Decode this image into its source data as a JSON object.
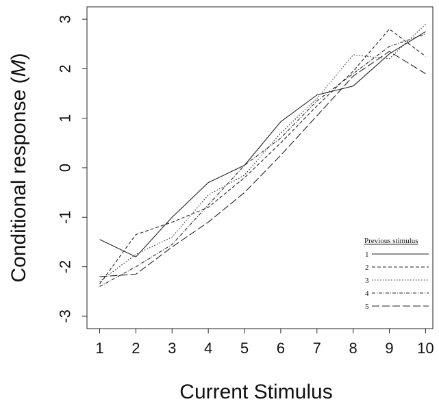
{
  "chart_data": {
    "type": "line",
    "title": "",
    "xlabel": "Current Stimulus",
    "ylabel": {
      "prefix": "Conditional response (",
      "italic": "M",
      "suffix": ")"
    },
    "x": [
      1,
      2,
      3,
      4,
      5,
      6,
      7,
      8,
      9,
      10
    ],
    "x_tick_labels": [
      "1",
      "2",
      "3",
      "4",
      "5",
      "6",
      "7",
      "8",
      "9",
      "10"
    ],
    "y_ticks": [
      -3,
      -2,
      -1,
      0,
      1,
      2,
      3
    ],
    "y_tick_labels": [
      "-3",
      "-2",
      "-1",
      "0",
      "1",
      "2",
      "3"
    ],
    "xlim": [
      0.65,
      10.2
    ],
    "ylim": [
      -3.25,
      3.25
    ],
    "grid": false,
    "legend": {
      "title": "Previous stimulus",
      "position": "bottom-right"
    },
    "series": [
      {
        "name": "1",
        "dash": "solid",
        "values": [
          -1.45,
          -1.8,
          -1.0,
          -0.3,
          0.05,
          0.93,
          1.47,
          1.65,
          2.3,
          2.75
        ]
      },
      {
        "name": "2",
        "dash": "dashed",
        "values": [
          -2.35,
          -1.35,
          -1.1,
          -0.8,
          -0.2,
          0.5,
          1.25,
          1.95,
          2.8,
          2.25
        ]
      },
      {
        "name": "3",
        "dash": "dotted",
        "values": [
          -2.3,
          -1.75,
          -1.4,
          -0.55,
          -0.15,
          0.7,
          1.4,
          2.28,
          2.2,
          2.9
        ]
      },
      {
        "name": "4",
        "dash": "dashdot",
        "values": [
          -2.4,
          -2.0,
          -1.55,
          -0.75,
          0.05,
          0.6,
          1.35,
          1.9,
          2.45,
          2.7
        ]
      },
      {
        "name": "5",
        "dash": "longdash",
        "values": [
          -2.2,
          -2.15,
          -1.6,
          -1.1,
          -0.5,
          0.25,
          1.05,
          1.85,
          2.35,
          1.9
        ]
      }
    ]
  }
}
